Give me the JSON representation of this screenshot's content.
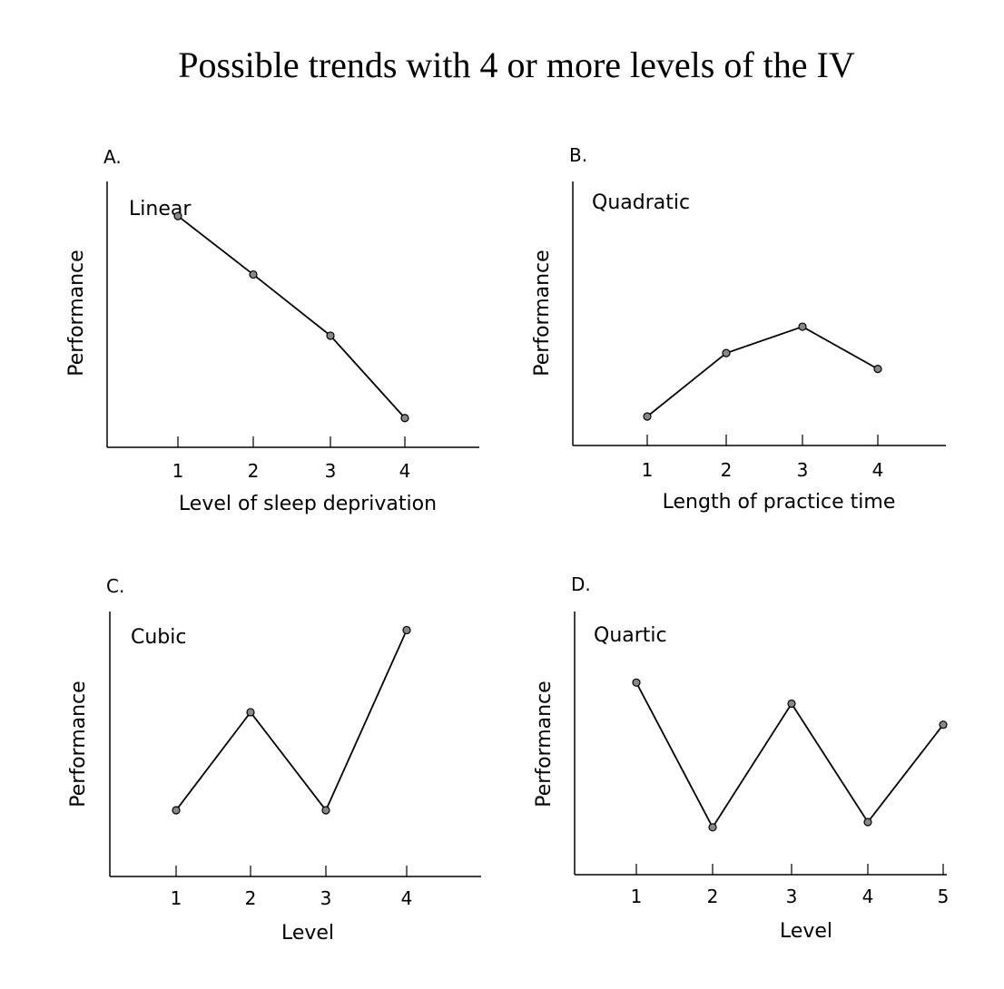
{
  "title": "Possible trends with 4 or more levels of the IV",
  "chart_data": [
    {
      "type": "line",
      "panel_label": "A.",
      "trend_label": "Linear",
      "ylabel": "Performance",
      "xlabel": "Level of sleep deprivation",
      "categories": [
        "1",
        "2",
        "3",
        "4"
      ],
      "values": [
        0.87,
        0.65,
        0.42,
        0.11
      ]
    },
    {
      "type": "line",
      "panel_label": "B.",
      "trend_label": "Quadratic",
      "ylabel": "Performance",
      "xlabel": "Length of practice time",
      "categories": [
        "1",
        "2",
        "3",
        "4"
      ],
      "values": [
        0.11,
        0.35,
        0.45,
        0.29
      ]
    },
    {
      "type": "line",
      "panel_label": "C.",
      "trend_label": "Cubic",
      "ylabel": "Performance",
      "xlabel": "Level",
      "categories": [
        "1",
        "2",
        "3",
        "4"
      ],
      "values": [
        0.25,
        0.62,
        0.25,
        0.93
      ]
    },
    {
      "type": "line",
      "panel_label": "D.",
      "trend_label": "Quartic",
      "ylabel": "Performance",
      "xlabel": "Level",
      "categories": [
        "1",
        "2",
        "3",
        "4",
        "5"
      ],
      "values": [
        0.73,
        0.18,
        0.65,
        0.2,
        0.57
      ]
    }
  ]
}
